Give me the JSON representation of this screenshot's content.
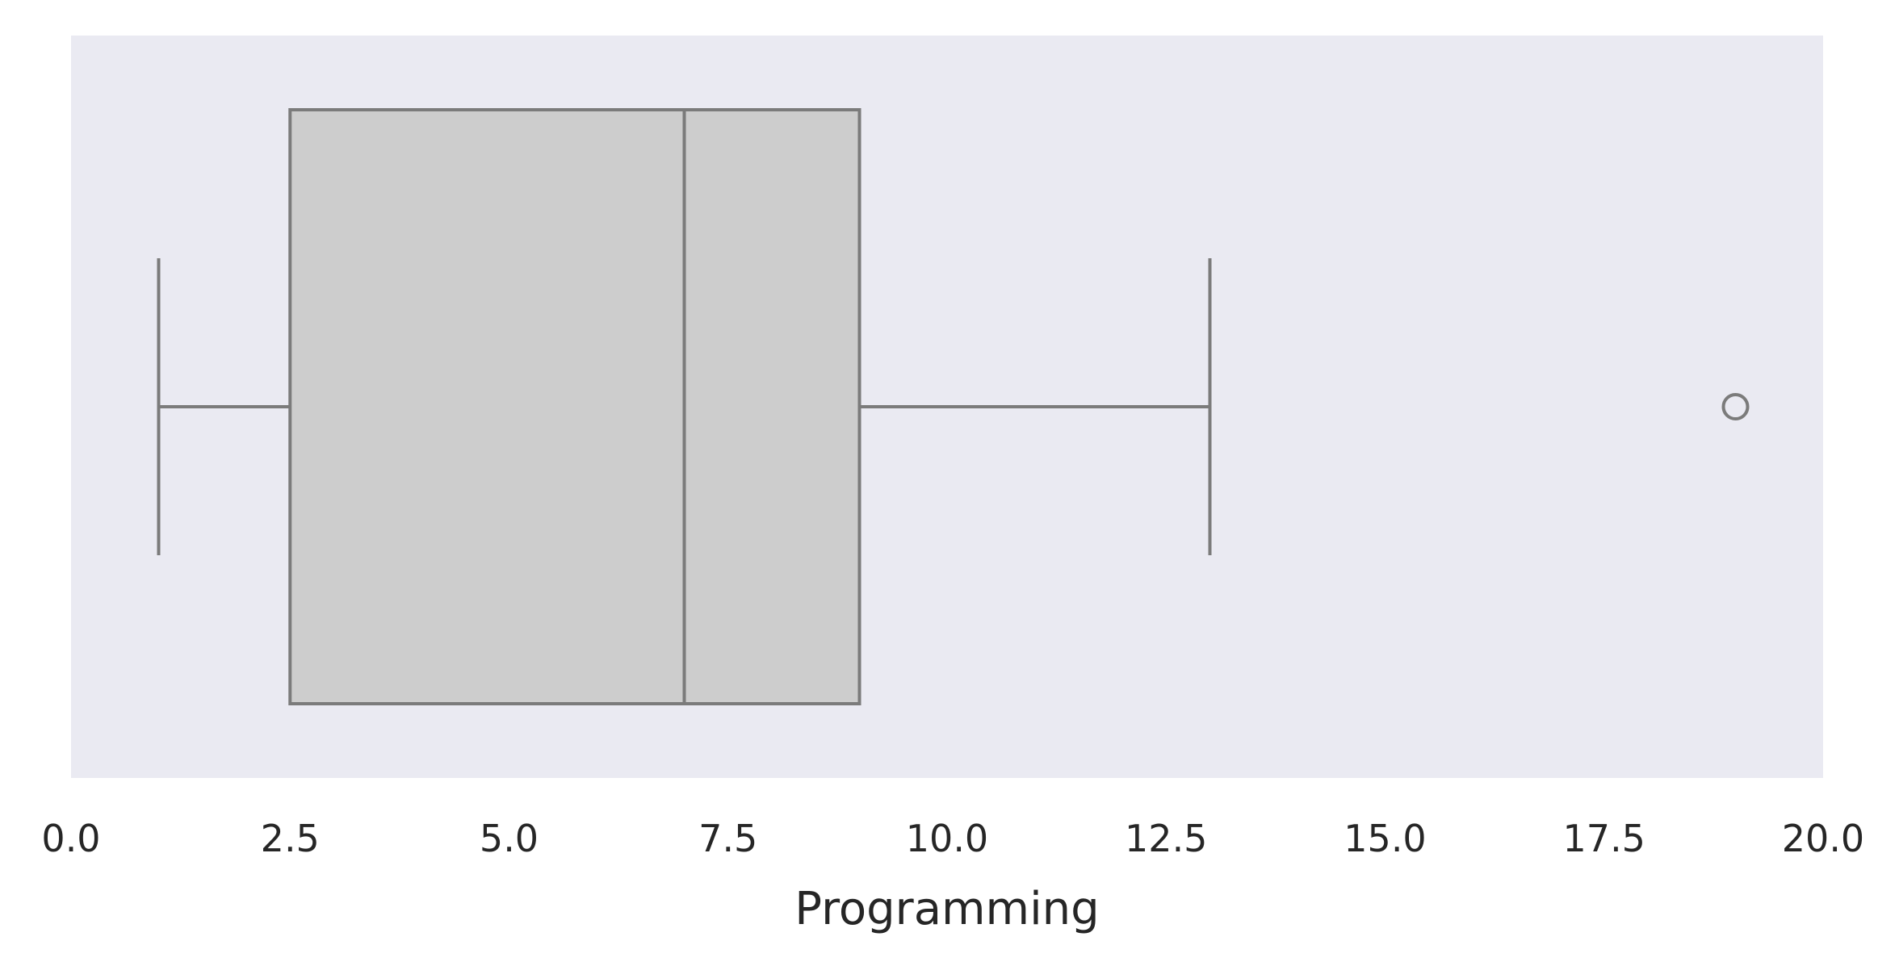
{
  "chart_data": {
    "type": "box",
    "orientation": "horizontal",
    "title": "",
    "xlabel": "Programming",
    "ylabel": "",
    "xlim": [
      0.0,
      20.0
    ],
    "xticks": [
      0.0,
      2.5,
      5.0,
      7.5,
      10.0,
      12.5,
      15.0,
      17.5,
      20.0
    ],
    "xtick_labels": [
      "0.0",
      "2.5",
      "5.0",
      "7.5",
      "10.0",
      "12.5",
      "15.0",
      "17.5",
      "20.0"
    ],
    "grid": false,
    "box": {
      "whisker_low": 1.0,
      "q1": 2.5,
      "median": 7.0,
      "q3": 9.0,
      "whisker_high": 13.0,
      "outliers": [
        19.0
      ]
    },
    "colors": {
      "plot_background": "#eaeaf2",
      "box_fill": "#cdcdcd",
      "box_edge": "#7b7b7b",
      "text": "#262626"
    }
  }
}
